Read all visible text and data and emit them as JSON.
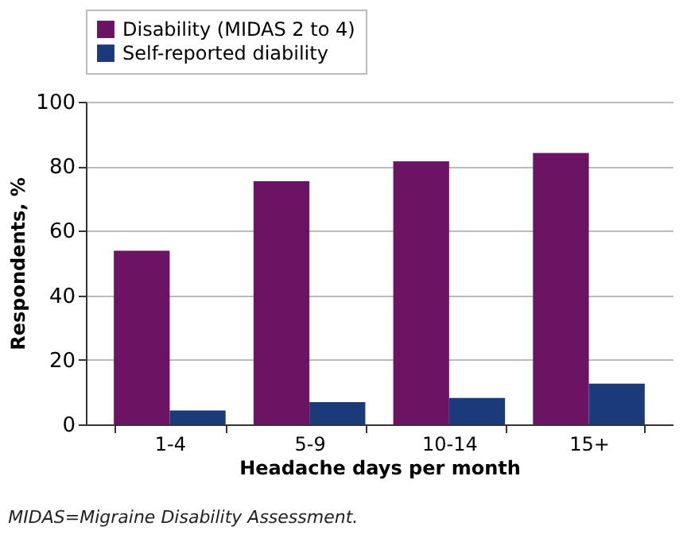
{
  "chart_data": {
    "type": "bar",
    "xlabel": "Headache days per month",
    "ylabel": "Respondents, %",
    "categories": [
      "1-4",
      "5-9",
      "10-14",
      "15+"
    ],
    "series": [
      {
        "name": "Disability (MIDAS 2 to 4)",
        "color": "#6b1464",
        "values": [
          53.8,
          75.4,
          81.5,
          84.1
        ]
      },
      {
        "name": "Self-reported diability",
        "color": "#1b3a7a",
        "values": [
          4.3,
          6.9,
          8.2,
          12.6
        ]
      }
    ],
    "ylim": [
      0,
      100
    ],
    "yticks": [
      0,
      20,
      40,
      60,
      80,
      100
    ],
    "grid": "y",
    "legend": "top",
    "annotations": [
      "MIDAS=Migraine Disability Assessment."
    ]
  }
}
